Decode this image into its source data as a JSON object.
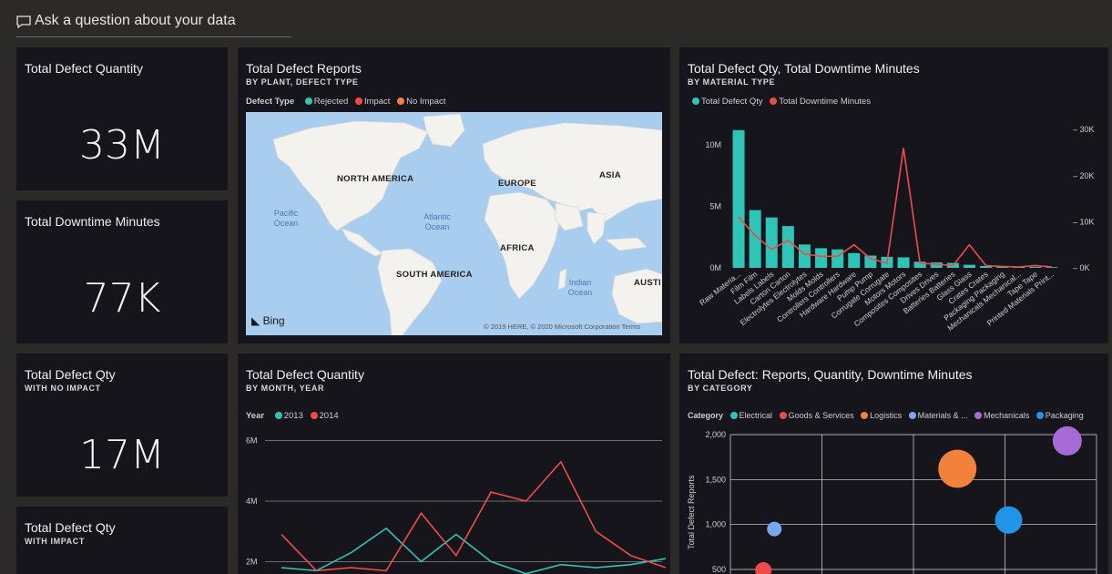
{
  "qa": {
    "placeholder": "Ask a question about your data"
  },
  "kpis": {
    "defect_qty": {
      "title": "Total Defect Quantity",
      "value": "33M"
    },
    "downtime": {
      "title": "Total Downtime Minutes",
      "value": "77K"
    },
    "no_impact": {
      "title": "Total Defect Qty",
      "subtitle": "WITH NO IMPACT",
      "value": "17M"
    },
    "with_impact": {
      "title": "Total Defect Qty",
      "subtitle": "WITH IMPACT"
    }
  },
  "map_tile": {
    "title": "Total Defect Reports",
    "subtitle": "BY PLANT, DEFECT TYPE",
    "legend_label": "Defect Type",
    "legend": [
      {
        "name": "Rejected",
        "color": "#2ec4b6"
      },
      {
        "name": "Impact",
        "color": "#ef4b4b"
      },
      {
        "name": "No Impact",
        "color": "#f2813b"
      }
    ],
    "continents": [
      "NORTH AMERICA",
      "EUROPE",
      "ASIA",
      "AFRICA",
      "SOUTH AMERICA",
      "AUSTI"
    ],
    "oceans": [
      "Pacific Ocean",
      "Atlantic Ocean",
      "Indian Ocean"
    ],
    "brand": "Bing",
    "copyright": "© 2019 HERE, © 2020 Microsoft Corporation Terms"
  },
  "material_tile": {
    "title": "Total Defect Qty, Total Downtime Minutes",
    "subtitle": "BY MATERIAL TYPE"
  },
  "month_tile": {
    "title": "Total Defect Quantity",
    "subtitle": "BY MONTH, YEAR"
  },
  "category_tile": {
    "title": "Total Defect: Reports, Quantity, Downtime Minutes",
    "subtitle": "BY CATEGORY"
  },
  "chart_data": [
    {
      "type": "bar",
      "combo": "bar+line",
      "categories": [
        "Raw Materia...",
        "Film Film",
        "Labels Labels",
        "Carton Carton",
        "Electrolytes Electrolytes",
        "Molds Molds",
        "Controllers Controllers",
        "Hardware Hardware",
        "Pump Pump",
        "Corrugate Corrugate",
        "Motors Motors",
        "Composites Composites",
        "Drives Drives",
        "Batteries Batteries",
        "Glass Glass",
        "Crates Crates",
        "Packaging Packaging",
        "Mechanicals Mechanical...",
        "Tape Tape",
        "Printed Materials Print..."
      ],
      "legend": [
        {
          "name": "Total Defect Qty",
          "color": "#2ec4b6"
        },
        {
          "name": "Total Downtime Minutes",
          "color": "#ef4b4b"
        }
      ],
      "series": [
        {
          "name": "Total Defect Qty",
          "axis": "left",
          "values": [
            11.2,
            4.7,
            4.1,
            3.4,
            1.9,
            1.6,
            1.5,
            1.2,
            1.0,
            0.9,
            0.85,
            0.5,
            0.45,
            0.4,
            0.25,
            0.15,
            0.12,
            0.1,
            0.08,
            0.06
          ]
        },
        {
          "name": "Total Downtime Minutes",
          "axis": "right",
          "values": [
            11,
            7,
            4,
            6,
            3,
            2.5,
            2.5,
            5,
            2,
            1,
            26,
            1,
            0.8,
            0.5,
            5,
            0.5,
            0.3,
            0.2,
            0.5,
            0.2
          ]
        }
      ],
      "yticks_left": [
        "10M",
        "5M",
        "0M"
      ],
      "yticks_right": [
        "30K",
        "20K",
        "10K",
        "0K"
      ],
      "ylim_left": [
        0,
        12
      ],
      "ylim_right": [
        0,
        32
      ]
    },
    {
      "type": "line",
      "legend_label": "Year",
      "legend": [
        {
          "name": "2013",
          "color": "#2ec4b6"
        },
        {
          "name": "2014",
          "color": "#ef4b4b"
        }
      ],
      "x": [
        1,
        2,
        3,
        4,
        5,
        6,
        7,
        8,
        9,
        10,
        11,
        12
      ],
      "series": [
        {
          "name": "2013",
          "values": [
            1.8,
            1.7,
            2.3,
            3.1,
            2.0,
            2.9,
            2.0,
            1.6,
            1.9,
            1.8,
            1.9,
            2.1
          ]
        },
        {
          "name": "2014",
          "values": [
            2.9,
            1.7,
            1.8,
            1.7,
            3.6,
            2.2,
            4.3,
            4.0,
            5.3,
            3.0,
            2.2,
            1.8
          ]
        }
      ],
      "yticks": [
        "6M",
        "4M",
        "2M"
      ],
      "ylim": [
        1.5,
        6.2
      ]
    },
    {
      "type": "scatter",
      "legend_label": "Category",
      "legend": [
        {
          "name": "Electrical",
          "color": "#2ec4b6"
        },
        {
          "name": "Goods & Services",
          "color": "#ef4b4b"
        },
        {
          "name": "Logistics",
          "color": "#f2813b"
        },
        {
          "name": "Materials & ...",
          "color": "#7aa6f0"
        },
        {
          "name": "Mechanicals",
          "color": "#a66bd6"
        },
        {
          "name": "Packaging",
          "color": "#2196e8"
        }
      ],
      "ylabel": "Total Defect Reports",
      "yticks": [
        "2,000",
        "1,500",
        "1,000",
        "500"
      ],
      "ylim": [
        500,
        2000
      ],
      "xlim": [
        0,
        10
      ],
      "points": [
        {
          "category": "Logistics",
          "x": 6.2,
          "y": 1620,
          "size": 21,
          "color": "#f2813b"
        },
        {
          "category": "Mechanicals",
          "x": 9.2,
          "y": 1930,
          "size": 16,
          "color": "#a66bd6"
        },
        {
          "category": "Packaging",
          "x": 7.6,
          "y": 1050,
          "size": 15,
          "color": "#2196e8"
        },
        {
          "category": "Materials & ...",
          "x": 1.2,
          "y": 950,
          "size": 8,
          "color": "#7aa6f0"
        },
        {
          "category": "Goods & Services",
          "x": 0.9,
          "y": 490,
          "size": 9,
          "color": "#ef4b4b"
        }
      ]
    }
  ]
}
